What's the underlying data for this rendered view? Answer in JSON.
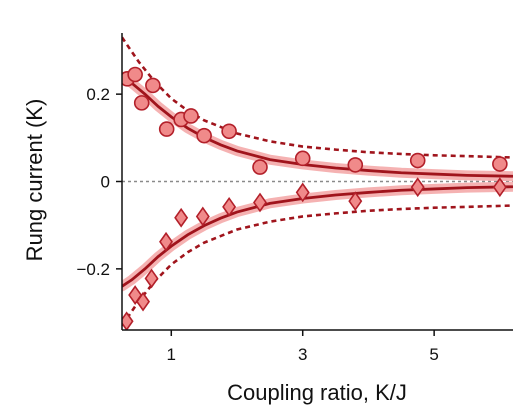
{
  "chart_data": {
    "type": "scatter",
    "xlabel": "Coupling ratio, K/J",
    "ylabel": "Rung current (K)",
    "xlim": [
      0.25,
      6.2
    ],
    "ylim": [
      -0.34,
      0.34
    ],
    "xticks": [
      1,
      3,
      5
    ],
    "yticks": [
      {
        "value": 0.2,
        "label": "0.2"
      },
      {
        "value": 0,
        "label": "0"
      },
      {
        "value": -0.2,
        "label": "−0.2"
      }
    ],
    "zero_line": {
      "y": 0,
      "style": "dotted",
      "color": "#8a8a8a"
    },
    "colors": {
      "marker_fill": "#f08a8a",
      "marker_edge": "#b3202a",
      "theory_line": "#a0141c",
      "theory_band": "#f3a5a5",
      "bound_line": "#a0141c",
      "axis": "#111111"
    },
    "series": [
      {
        "kind": "measured",
        "marker": "circle",
        "points": [
          {
            "x": 0.33,
            "y": 0.235
          },
          {
            "x": 0.45,
            "y": 0.245
          },
          {
            "x": 0.55,
            "y": 0.18
          },
          {
            "x": 0.72,
            "y": 0.22
          },
          {
            "x": 0.93,
            "y": 0.12
          },
          {
            "x": 1.15,
            "y": 0.142
          },
          {
            "x": 1.3,
            "y": 0.15
          },
          {
            "x": 1.5,
            "y": 0.105
          },
          {
            "x": 1.88,
            "y": 0.115
          },
          {
            "x": 2.35,
            "y": 0.033
          },
          {
            "x": 3.0,
            "y": 0.053
          },
          {
            "x": 3.8,
            "y": 0.038
          },
          {
            "x": 4.75,
            "y": 0.048
          },
          {
            "x": 6.0,
            "y": 0.04
          }
        ]
      },
      {
        "kind": "measured",
        "marker": "diamond",
        "points": [
          {
            "x": 0.32,
            "y": -0.32
          },
          {
            "x": 0.45,
            "y": -0.26
          },
          {
            "x": 0.57,
            "y": -0.275
          },
          {
            "x": 0.7,
            "y": -0.222
          },
          {
            "x": 0.92,
            "y": -0.138
          },
          {
            "x": 1.15,
            "y": -0.083
          },
          {
            "x": 1.48,
            "y": -0.08
          },
          {
            "x": 1.88,
            "y": -0.058
          },
          {
            "x": 2.35,
            "y": -0.048
          },
          {
            "x": 3.0,
            "y": -0.025
          },
          {
            "x": 3.8,
            "y": -0.045
          },
          {
            "x": 4.75,
            "y": -0.013
          },
          {
            "x": 6.0,
            "y": -0.013
          }
        ]
      },
      {
        "kind": "theory",
        "style": "solid",
        "x": [
          0.25,
          0.4,
          0.6,
          0.8,
          1.0,
          1.25,
          1.5,
          1.75,
          2.0,
          2.5,
          3.0,
          3.5,
          4.0,
          4.5,
          5.0,
          5.5,
          6.2
        ],
        "y": [
          0.24,
          0.225,
          0.2,
          0.172,
          0.148,
          0.122,
          0.101,
          0.084,
          0.07,
          0.05,
          0.039,
          0.031,
          0.025,
          0.02,
          0.017,
          0.014,
          0.012
        ]
      },
      {
        "kind": "theory",
        "style": "solid",
        "x": [
          0.25,
          0.4,
          0.6,
          0.8,
          1.0,
          1.25,
          1.5,
          1.75,
          2.0,
          2.5,
          3.0,
          3.5,
          4.0,
          4.5,
          5.0,
          5.5,
          6.2
        ],
        "y": [
          -0.24,
          -0.225,
          -0.2,
          -0.172,
          -0.148,
          -0.122,
          -0.101,
          -0.084,
          -0.07,
          -0.05,
          -0.039,
          -0.031,
          -0.025,
          -0.02,
          -0.017,
          -0.014,
          -0.012
        ]
      },
      {
        "kind": "bound",
        "style": "dashed",
        "x": [
          0.25,
          0.5,
          0.75,
          1.0,
          1.25,
          1.5,
          2.0,
          2.5,
          3.0,
          3.5,
          4.0,
          4.5,
          5.0,
          5.5,
          6.2
        ],
        "y": [
          0.33,
          0.275,
          0.228,
          0.19,
          0.162,
          0.14,
          0.11,
          0.092,
          0.08,
          0.073,
          0.067,
          0.063,
          0.06,
          0.058,
          0.055
        ]
      },
      {
        "kind": "bound",
        "style": "dashed",
        "x": [
          0.25,
          0.5,
          0.75,
          1.0,
          1.25,
          1.5,
          2.0,
          2.5,
          3.0,
          3.5,
          4.0,
          4.5,
          5.0,
          5.5,
          6.2
        ],
        "y": [
          -0.33,
          -0.275,
          -0.228,
          -0.19,
          -0.162,
          -0.14,
          -0.11,
          -0.092,
          -0.08,
          -0.073,
          -0.067,
          -0.063,
          -0.06,
          -0.058,
          -0.055
        ]
      }
    ]
  }
}
